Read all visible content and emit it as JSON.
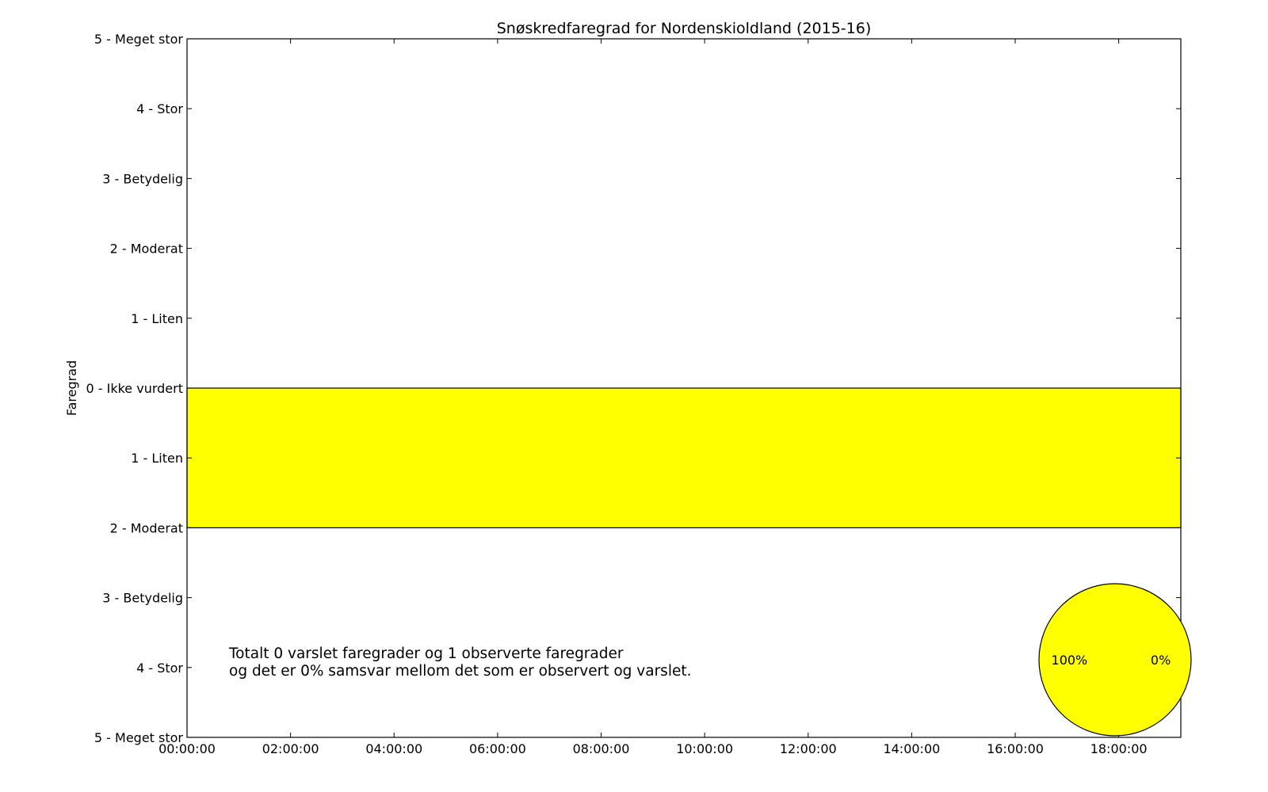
{
  "chart_data": {
    "type": "bar",
    "title": "Snøskredfaregrad for Nordenskioldland (2015-16)",
    "xlabel": "",
    "ylabel": "Faregrad",
    "x_tick_labels": [
      "00:00:00",
      "02:00:00",
      "04:00:00",
      "06:00:00",
      "08:00:00",
      "10:00:00",
      "12:00:00",
      "14:00:00",
      "16:00:00",
      "18:00:00"
    ],
    "x_tick_hours": [
      0,
      2,
      4,
      6,
      8,
      10,
      12,
      14,
      16,
      18
    ],
    "xlim_hours": [
      0,
      19.2
    ],
    "y_ticks": [
      {
        "value": 5,
        "label": "5 - Meget stor"
      },
      {
        "value": 4,
        "label": "4 - Stor"
      },
      {
        "value": 3,
        "label": "3 - Betydelig"
      },
      {
        "value": 2,
        "label": "2 - Moderat"
      },
      {
        "value": 1,
        "label": "1 - Liten"
      },
      {
        "value": 0,
        "label": "0 - Ikke vurdert"
      },
      {
        "value": -1,
        "label": "1 - Liten"
      },
      {
        "value": -2,
        "label": "2 - Moderat"
      },
      {
        "value": -3,
        "label": "3 - Betydelig"
      },
      {
        "value": -4,
        "label": "4 - Stor"
      },
      {
        "value": -5,
        "label": "5 - Meget stor"
      }
    ],
    "ylim": [
      -5,
      5
    ],
    "grid": false,
    "bars": [
      {
        "x_start_hours": 0,
        "x_end_hours": 19.2,
        "y_bottom": -2,
        "y_top": 0,
        "color": "#ffff00"
      }
    ],
    "annotation": [
      "Totalt 0 varslet faregrader og 1 observerte faregrader",
      "og det er 0% samsvar mellom det som er observert og varslet."
    ],
    "pie": {
      "values": [
        100,
        0
      ],
      "labels": [
        "100%",
        "0%"
      ],
      "colors": [
        "#ffff00",
        "#ffff00"
      ]
    }
  }
}
